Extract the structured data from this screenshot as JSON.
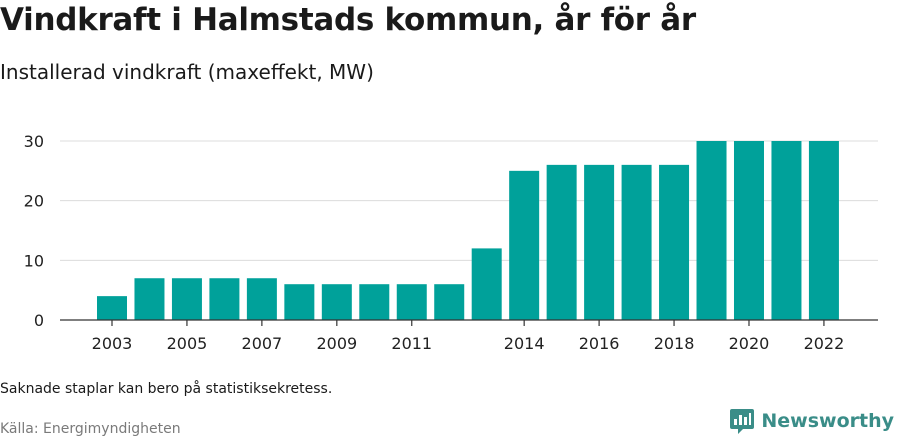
{
  "title": "Vindkraft i Halmstads kommun, år för år",
  "subtitle": "Installerad vindkraft (maxeffekt, MW)",
  "note": "Saknade staplar kan bero på statistiksekretess.",
  "source": "Källa: Energimyndigheten",
  "brand": {
    "name": "Newsworthy",
    "icon": "newsworthy-logo-icon",
    "color": "#3a8d88"
  },
  "chart_data": {
    "type": "bar",
    "categories": [
      2003,
      2004,
      2005,
      2006,
      2007,
      2008,
      2009,
      2010,
      2011,
      2012,
      2013,
      2014,
      2015,
      2016,
      2017,
      2018,
      2019,
      2020,
      2021,
      2022
    ],
    "values": [
      4,
      7,
      7,
      7,
      7,
      6,
      6,
      6,
      6,
      6,
      12,
      25,
      26,
      26,
      26,
      26,
      30,
      30,
      30,
      30
    ],
    "x_tick_labels": [
      "2003",
      "2005",
      "2007",
      "2009",
      "2011",
      "2014",
      "2016",
      "2018",
      "2020",
      "2022"
    ],
    "y_ticks": [
      0,
      10,
      20,
      30
    ],
    "ylim": [
      0,
      30
    ],
    "grid": true,
    "bar_color": "#00a19a"
  }
}
